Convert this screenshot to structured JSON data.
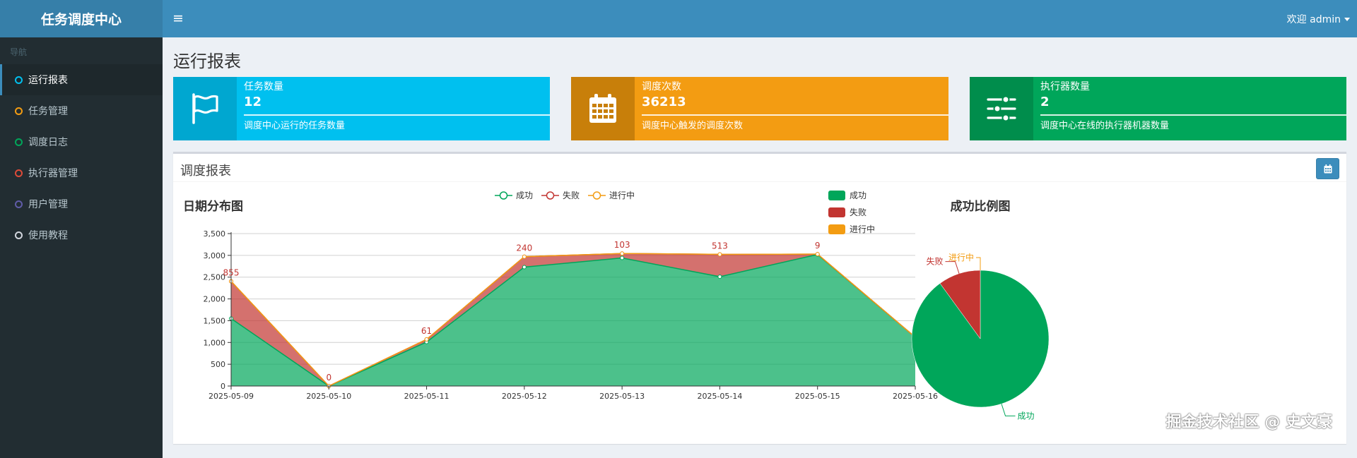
{
  "header": {
    "logo": "任务调度中心",
    "toggle_icon": "≡",
    "user_greeting": "欢迎 admin"
  },
  "sidebar": {
    "section_label": "导航",
    "items": [
      {
        "label": "运行报表",
        "ring_color": "#00c0ef",
        "active": true
      },
      {
        "label": "任务管理",
        "ring_color": "#f39c12"
      },
      {
        "label": "调度日志",
        "ring_color": "#00a65a"
      },
      {
        "label": "执行器管理",
        "ring_color": "#dd4b39"
      },
      {
        "label": "用户管理",
        "ring_color": "#605ca8"
      },
      {
        "label": "使用教程",
        "ring_color": "#d2d6de"
      }
    ]
  },
  "page_title": "运行报表",
  "info_boxes": [
    {
      "label": "任务数量",
      "value": "12",
      "desc": "调度中心运行的任务数量",
      "icon": "flag-icon",
      "color": "#00c0ef",
      "icon_bg": "#00a7d0"
    },
    {
      "label": "调度次数",
      "value": "36213",
      "desc": "调度中心触发的调度次数",
      "icon": "calendar-icon",
      "color": "#f39c12",
      "icon_bg": "#c87f0a"
    },
    {
      "label": "执行器数量",
      "value": "2",
      "desc": "调度中心在线的执行器机器数量",
      "icon": "sliders-icon",
      "color": "#00a65a",
      "icon_bg": "#008d4c"
    }
  ],
  "report_box": {
    "title": "调度报表",
    "button_icon": "calendar-icon"
  },
  "chart_data": [
    {
      "type": "area",
      "title": "日期分布图",
      "stacked": true,
      "categories": [
        "2025-05-09",
        "2025-05-10",
        "2025-05-11",
        "2025-05-12",
        "2025-05-13",
        "2025-05-14",
        "2025-05-15",
        "2025-05-16"
      ],
      "series": [
        {
          "name": "成功",
          "color": "#00a65a",
          "values": [
            1550,
            0,
            1010,
            2730,
            2940,
            2510,
            3020,
            1120
          ]
        },
        {
          "name": "失败",
          "color": "#c23531",
          "values": [
            855,
            0,
            61,
            240,
            103,
            513,
            9,
            0
          ]
        },
        {
          "name": "进行中",
          "color": "#f39c12",
          "values": [
            0,
            0,
            0,
            0,
            0,
            0,
            0,
            0
          ]
        }
      ],
      "data_labels": [
        "855",
        "0",
        "61",
        "240",
        "103",
        "513",
        "9",
        "0"
      ],
      "ylim": [
        0,
        3500
      ],
      "yticks": [
        "0",
        "500",
        "1,000",
        "1,500",
        "2,000",
        "2,500",
        "3,000",
        "3,500"
      ],
      "grid": true,
      "legend": "top-center"
    },
    {
      "type": "pie",
      "title": "成功比例图",
      "slices": [
        {
          "label": "成功",
          "value": 34200,
          "color": "#00a65a"
        },
        {
          "label": "失败",
          "value": 3800,
          "color": "#c23531"
        },
        {
          "label": "进行中",
          "value": 0,
          "color": "#f39c12"
        }
      ],
      "legend": "top-left"
    }
  ],
  "watermark": "掘金技术社区 @ 史文豪"
}
